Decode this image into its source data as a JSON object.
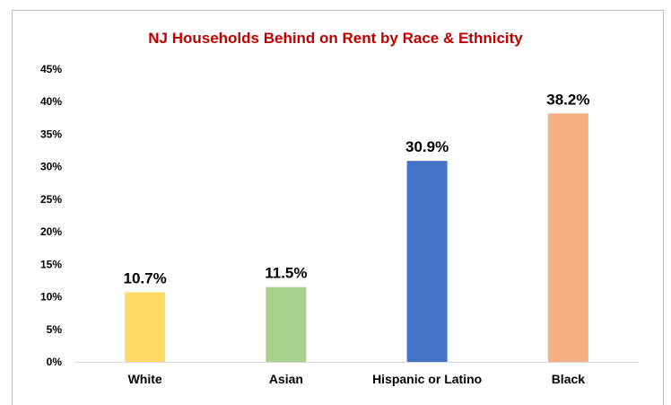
{
  "chart_data": {
    "type": "bar",
    "title": "NJ Households Behind on Rent by Race & Ethnicity",
    "xlabel": "",
    "ylabel": "",
    "categories": [
      "White",
      "Asian",
      "Hispanic or Latino",
      "Black"
    ],
    "values": [
      10.7,
      11.5,
      30.9,
      38.2
    ],
    "value_labels": [
      "10.7%",
      "11.5%",
      "30.9%",
      "38.2%"
    ],
    "colors": [
      "#ffd966",
      "#a9d18e",
      "#4472c4",
      "#f4b183"
    ],
    "ylim": [
      0,
      45
    ],
    "yticks": [
      0,
      5,
      10,
      15,
      20,
      25,
      30,
      35,
      40,
      45
    ],
    "ytick_labels": [
      "0%",
      "5%",
      "10%",
      "15%",
      "20%",
      "25%",
      "30%",
      "35%",
      "40%",
      "45%"
    ],
    "grid": false,
    "legend": "none"
  }
}
